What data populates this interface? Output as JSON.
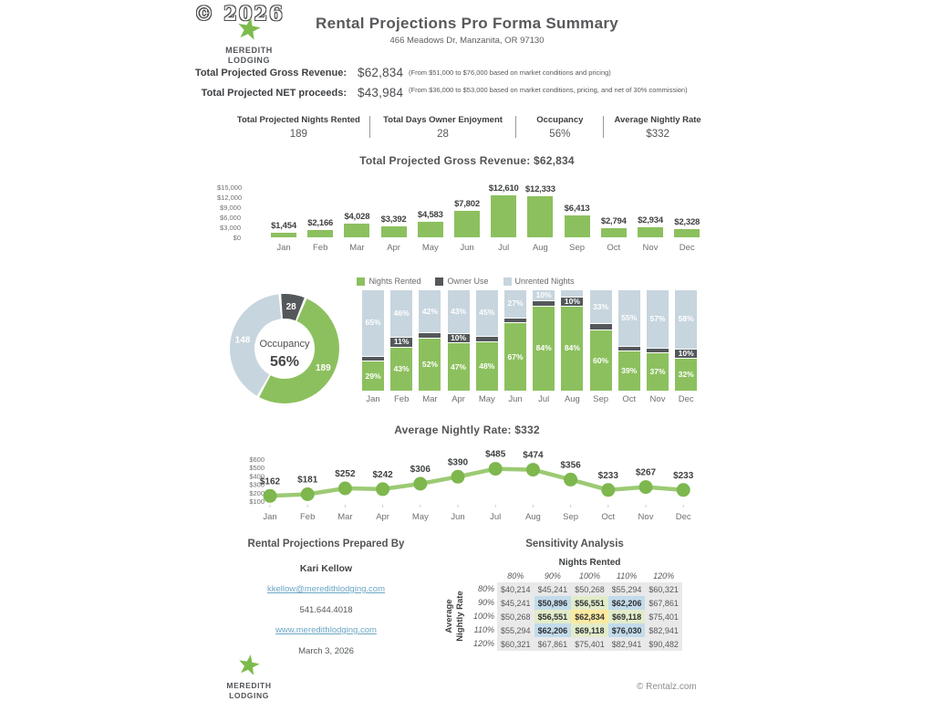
{
  "watermark": "© 2026",
  "brand": {
    "line1": "MEREDITH",
    "line2": "LODGING",
    "star_color": "#7cbb4c"
  },
  "header": {
    "title": "Rental Projections Pro Forma Summary",
    "address": "466 Meadows Dr, Manzanita, OR 97130"
  },
  "summary_rows": [
    {
      "label": "Total Projected Gross Revenue:",
      "value": "$62,834",
      "note": "(From $51,000 to $76,000 based on market conditions and pricing)"
    },
    {
      "label": "Total Projected NET proceeds:",
      "value": "$43,984",
      "note": "(From $36,000 to $53,000 based on market conditions, pricing, and net of 30% commission)"
    }
  ],
  "stats": [
    {
      "label": "Total Projected Nights Rented",
      "value": "189"
    },
    {
      "label": "Total Days Owner Enjoyment",
      "value": "28"
    },
    {
      "label": "Occupancy",
      "value": "56%"
    },
    {
      "label": "Average Nightly Rate",
      "value": "$332"
    }
  ],
  "chart_data": [
    {
      "type": "bar",
      "title": "Total Projected Gross Revenue: $62,834",
      "categories": [
        "Jan",
        "Feb",
        "Mar",
        "Apr",
        "May",
        "Jun",
        "Jul",
        "Aug",
        "Sep",
        "Oct",
        "Nov",
        "Dec"
      ],
      "values": [
        1454,
        2166,
        4028,
        3392,
        4583,
        7802,
        12610,
        12333,
        6413,
        2794,
        2934,
        2328
      ],
      "labels": [
        "$1,454",
        "$2,166",
        "$4,028",
        "$3,392",
        "$4,583",
        "$7,802",
        "$12,610",
        "$12,333",
        "$6,413",
        "$2,794",
        "$2,934",
        "$2,328"
      ],
      "ytick_values": [
        15000,
        12000,
        9000,
        6000,
        3000,
        0
      ],
      "ytick_labels": [
        "$15,000",
        "$12,000",
        "$9,000",
        "$6,000",
        "$3,000",
        "$0"
      ],
      "ylim": [
        0,
        15000
      ],
      "bar_color": "#8cc05e"
    },
    {
      "type": "donut",
      "center_label": "Occupancy",
      "center_value": "56%",
      "total": 365,
      "slices": [
        {
          "name": "Owner Use",
          "value": 28,
          "color": "#54585a"
        },
        {
          "name": "Nights Rented",
          "value": 189,
          "color": "#8cc05e"
        },
        {
          "name": "Unrented Nights",
          "value": 148,
          "color": "#c7d5de"
        }
      ]
    },
    {
      "type": "stacked-bar",
      "legend": [
        "Nights Rented",
        "Owner Use",
        "Unrented Nights"
      ],
      "categories": [
        "Jan",
        "Feb",
        "Mar",
        "Apr",
        "May",
        "Jun",
        "Jul",
        "Aug",
        "Sep",
        "Oct",
        "Nov",
        "Dec"
      ],
      "series": [
        {
          "name": "Nights Rented",
          "color": "#8cc05e",
          "values": [
            29,
            43,
            52,
            47,
            48,
            67,
            84,
            84,
            60,
            39,
            37,
            32
          ]
        },
        {
          "name": "Owner Use",
          "color": "#54585a",
          "values": [
            6,
            11,
            6,
            10,
            7,
            6,
            6,
            10,
            7,
            6,
            6,
            10
          ]
        },
        {
          "name": "Unrented Nights",
          "color": "#c7d5de",
          "values": [
            65,
            46,
            42,
            43,
            45,
            27,
            10,
            6,
            33,
            55,
            57,
            58
          ]
        }
      ],
      "label_threshold": 10,
      "unit": "%"
    },
    {
      "type": "line",
      "title": "Average Nightly Rate: $332",
      "categories": [
        "Jan",
        "Feb",
        "Mar",
        "Apr",
        "May",
        "Jun",
        "Jul",
        "Aug",
        "Sep",
        "Oct",
        "Nov",
        "Dec"
      ],
      "values": [
        162,
        181,
        252,
        242,
        306,
        390,
        485,
        474,
        356,
        233,
        267,
        233
      ],
      "labels": [
        "$162",
        "$181",
        "$252",
        "$242",
        "$306",
        "$390",
        "$485",
        "$474",
        "$356",
        "$233",
        "$267",
        "$233"
      ],
      "ytick_values": [
        600,
        500,
        400,
        300,
        200,
        100
      ],
      "ytick_labels": [
        "$600",
        "$500",
        "$400",
        "$300",
        "$200",
        "$100"
      ],
      "ylim": [
        100,
        600
      ],
      "line_color": "#9cca74",
      "point_color": "#7db74e"
    }
  ],
  "prepared_by": {
    "heading": "Rental Projections Prepared By",
    "name": "Kari Kellow",
    "email": "kkellow@meredithlodging.com",
    "phone": "541.644.4018",
    "website": "www.meredithlodging.com",
    "date": "March 3, 2026"
  },
  "sensitivity": {
    "heading": "Sensitivity Analysis",
    "col_group": "Nights Rented",
    "row_group_line1": "Average",
    "row_group_line2": "Nightly Rate",
    "col_headers": [
      "80%",
      "90%",
      "100%",
      "110%",
      "120%"
    ],
    "row_headers": [
      "80%",
      "90%",
      "100%",
      "110%",
      "120%"
    ],
    "cells": [
      [
        "$40,214",
        "$45,241",
        "$50,268",
        "$55,294",
        "$60,321"
      ],
      [
        "$45,241",
        "$50,896",
        "$56,551",
        "$62,206",
        "$67,861"
      ],
      [
        "$50,268",
        "$56,551",
        "$62,834",
        "$69,118",
        "$75,401"
      ],
      [
        "$55,294",
        "$62,206",
        "$69,118",
        "$76,030",
        "$82,941"
      ],
      [
        "$60,321",
        "$67,861",
        "$75,401",
        "$82,941",
        "$90,482"
      ]
    ],
    "highlights": [
      {
        "r": 1,
        "c": 1,
        "style": "blue"
      },
      {
        "r": 1,
        "c": 2,
        "style": "green"
      },
      {
        "r": 1,
        "c": 3,
        "style": "blue"
      },
      {
        "r": 2,
        "c": 1,
        "style": "green"
      },
      {
        "r": 2,
        "c": 2,
        "style": "yellow"
      },
      {
        "r": 2,
        "c": 3,
        "style": "green"
      },
      {
        "r": 3,
        "c": 1,
        "style": "blue"
      },
      {
        "r": 3,
        "c": 2,
        "style": "green"
      },
      {
        "r": 3,
        "c": 3,
        "style": "blue"
      }
    ],
    "highlight_colors": {
      "yellow": "#fce9a0",
      "green": "#e2ecca",
      "blue": "#c3dbeb"
    }
  },
  "footer": {
    "copyright": "© Rentalz.com"
  }
}
